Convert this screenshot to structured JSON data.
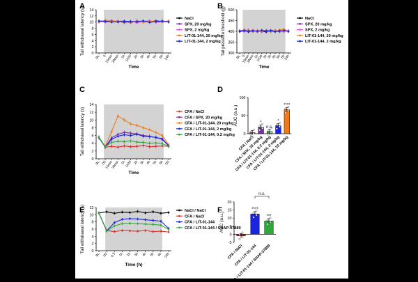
{
  "chart_data": [
    {
      "id": "A",
      "type": "line",
      "panel_label": "A",
      "ylabel": "Tail withdrawal latency (s)",
      "xlabel": "Time",
      "ylim": [
        0,
        14
      ],
      "yticks": [
        0,
        2,
        4,
        6,
        8,
        10,
        12,
        14
      ],
      "categories": [
        "BL",
        "0",
        "15min",
        "30min",
        "1h",
        "1h30",
        "2h",
        "3h",
        "4h",
        "5h",
        "6h",
        "24h"
      ],
      "shade": [
        1,
        10
      ],
      "series": [
        {
          "name": "NaCl",
          "color": "#000000",
          "values": [
            10.2,
            10.4,
            10.1,
            10.3,
            9.9,
            10.2,
            10.0,
            10.3,
            10.1,
            10.4,
            10.2,
            10.3
          ]
        },
        {
          "name": "SPX, 20 mg/kg",
          "color": "#7b2ea8",
          "values": [
            10.0,
            10.3,
            10.5,
            10.0,
            10.2,
            9.8,
            10.4,
            10.1,
            10.3,
            10.0,
            10.4,
            10.1
          ]
        },
        {
          "name": "SPX, 2 mg/kg",
          "color": "#e64fd6",
          "values": [
            10.3,
            10.0,
            10.2,
            10.4,
            10.1,
            10.3,
            9.8,
            10.2,
            10.5,
            9.9,
            10.1,
            10.4
          ]
        },
        {
          "name": "LIT-01-144, 20 mg/kg",
          "color": "#f07a1a",
          "values": [
            10.1,
            10.6,
            10.3,
            10.2,
            10.4,
            10.0,
            10.3,
            9.9,
            10.2,
            10.3,
            10.0,
            10.2
          ]
        },
        {
          "name": "LIT-01-144, 2 mg/kg",
          "color": "#1a23e0",
          "values": [
            10.4,
            10.2,
            10.0,
            10.1,
            10.3,
            10.2,
            10.1,
            10.4,
            9.9,
            10.2,
            10.3,
            10.0
          ]
        }
      ]
    },
    {
      "id": "B",
      "type": "line",
      "panel_label": "B",
      "ylabel": "Tail pressure threshold (g)",
      "xlabel": "Time",
      "ylim": [
        300,
        500
      ],
      "yticks": [
        300,
        350,
        400,
        450,
        500
      ],
      "categories": [
        "BL",
        "0",
        "15min",
        "30min",
        "1h",
        "1h30",
        "2h",
        "3h",
        "4h",
        "5h",
        "6h",
        "24h"
      ],
      "shade": [
        1,
        10
      ],
      "series": [
        {
          "name": "NaCl",
          "color": "#000000",
          "values": [
            402,
            405,
            398,
            404,
            400,
            401,
            397,
            404,
            402,
            399,
            403,
            401
          ]
        },
        {
          "name": "SPX, 20 mg/kg",
          "color": "#7b2ea8",
          "values": [
            398,
            402,
            406,
            400,
            403,
            398,
            405,
            401,
            399,
            404,
            400,
            403
          ]
        },
        {
          "name": "SPX, 2 mg/kg",
          "color": "#e64fd6",
          "values": [
            404,
            399,
            401,
            406,
            398,
            403,
            400,
            398,
            405,
            401,
            398,
            404
          ]
        },
        {
          "name": "LIT-01-144, 20 mg/kg",
          "color": "#f07a1a",
          "values": [
            400,
            408,
            403,
            398,
            405,
            400,
            404,
            398,
            402,
            406,
            410,
            400
          ]
        },
        {
          "name": "LIT-01-144, 2 mg/kg",
          "color": "#1a23e0",
          "values": [
            401,
            403,
            399,
            402,
            400,
            405,
            401,
            403,
            398,
            402,
            404,
            399
          ]
        }
      ]
    },
    {
      "id": "C",
      "type": "line",
      "panel_label": "C",
      "ylabel": "Tail withdrawal latency (s)",
      "xlabel": "Time",
      "ylim": [
        0,
        14
      ],
      "yticks": [
        0,
        2,
        4,
        6,
        8,
        10,
        12,
        14
      ],
      "categories": [
        "BL",
        "D3",
        "15min",
        "30min",
        "1h",
        "1h30",
        "2h",
        "3h",
        "4h",
        "5h",
        "6h",
        "D3"
      ],
      "shade": [
        1,
        10
      ],
      "series": [
        {
          "name": "CFA / NaCl",
          "color": "#e03030",
          "values": [
            5.5,
            3.0,
            3.2,
            3.0,
            3.3,
            3.1,
            3.2,
            3.4,
            3.1,
            3.2,
            3.3,
            3.2
          ]
        },
        {
          "name": "CFA / SPX, 20 mg/kg",
          "color": "#7b2ea8",
          "values": [
            5.6,
            3.1,
            5.4,
            6.3,
            6.8,
            6.6,
            6.4,
            6.0,
            5.8,
            5.5,
            5.2,
            3.4
          ]
        },
        {
          "name": "CFA / LIT-01-144, 20 mg/kg",
          "color": "#f07a1a",
          "values": [
            5.5,
            3.2,
            7.0,
            11.0,
            10.0,
            9.0,
            8.6,
            8.0,
            7.5,
            6.8,
            6.0,
            3.6
          ]
        },
        {
          "name": "CFA / LIT-01-144, 2 mg/kg",
          "color": "#1a23e0",
          "values": [
            5.4,
            3.0,
            5.0,
            5.8,
            6.2,
            6.0,
            6.3,
            5.8,
            5.7,
            5.5,
            5.0,
            3.3
          ]
        },
        {
          "name": "CFA / LIT-01-144, 0.2 mg/kg",
          "color": "#2eaa38",
          "values": [
            5.5,
            3.1,
            4.2,
            4.5,
            4.4,
            4.6,
            4.3,
            4.2,
            4.0,
            4.1,
            3.9,
            3.2
          ]
        }
      ]
    },
    {
      "id": "D",
      "type": "bar",
      "panel_label": "D",
      "ylabel": "AUC (a.u.)",
      "ylim": [
        0,
        100
      ],
      "yticks": [
        0,
        50,
        100
      ],
      "categories": [
        "CFA / NaCl",
        "CFA / SPX, 20 mg/kg",
        "CFA / LIT-01-144, 0.2 mg/kg",
        "CFA / LIT-01-144, 2 mg/kg",
        "CFA / LIT-01-144, 20 mg/kg"
      ],
      "values": [
        3,
        18,
        6,
        22,
        66
      ],
      "colors": [
        "#e03030",
        "#7b2ea8",
        "#2eaa38",
        "#1a23e0",
        "#f07a1a"
      ],
      "annotations": [
        "",
        "*",
        "n.s.",
        "*",
        "****"
      ]
    },
    {
      "id": "E",
      "type": "line",
      "panel_label": "E",
      "ylabel": "Tail withdrawal latency (s)",
      "xlabel": "Time (h)",
      "ylim": [
        0,
        12
      ],
      "yticks": [
        0,
        2,
        4,
        6,
        8,
        10,
        12
      ],
      "categories": [
        "BL",
        "D3",
        "0.5",
        "1h",
        "2h",
        "3h",
        "4h",
        "5h",
        "6h",
        "24h"
      ],
      "shade": [
        1,
        8
      ],
      "series": [
        {
          "name": "NaCl / NaCl",
          "color": "#000000",
          "values": [
            10.5,
            10.8,
            10.4,
            10.7,
            10.6,
            10.9,
            10.5,
            10.8,
            10.4,
            10.6
          ]
        },
        {
          "name": "CFA / NaCl",
          "color": "#e03030",
          "values": [
            10.4,
            5.6,
            5.3,
            5.6,
            5.5,
            5.4,
            5.6,
            5.3,
            5.4,
            5.2
          ]
        },
        {
          "name": "CFA / LIT-01-144",
          "color": "#1a23e0",
          "values": [
            10.5,
            5.5,
            7.8,
            8.7,
            8.9,
            8.8,
            8.6,
            8.4,
            8.2,
            6.2
          ]
        },
        {
          "name": "CFA / LIT-01-144 / SNAP-37889",
          "color": "#2eaa38",
          "values": [
            10.4,
            5.4,
            6.9,
            7.5,
            7.6,
            7.5,
            7.4,
            7.3,
            7.1,
            5.9
          ]
        }
      ]
    },
    {
      "id": "F",
      "type": "bar",
      "panel_label": "F",
      "ylabel": "AUC (a.u.)",
      "ylim": [
        -5,
        20
      ],
      "yticks": [
        -5,
        0,
        5,
        10,
        15,
        20
      ],
      "categories": [
        "CFA / NaCl",
        "CFA / LIT-01-144",
        "CFA / LIT-01-144 / SNAP-37889"
      ],
      "values": [
        -1,
        12.5,
        8.2
      ],
      "colors": [
        "#e03030",
        "#1a23e0",
        "#2eaa38"
      ],
      "annotations": [
        "",
        "****",
        "***"
      ],
      "bracket_label": "n.s."
    }
  ]
}
